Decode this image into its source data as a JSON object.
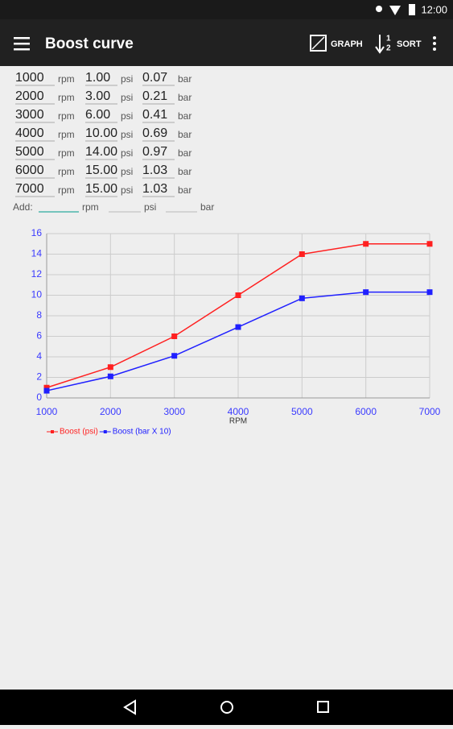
{
  "status_bar": {
    "time": "12:00"
  },
  "toolbar": {
    "title": "Boost curve",
    "actions": [
      "GRAPH",
      "SORT"
    ]
  },
  "table": {
    "units": [
      "rpm",
      "psi",
      "bar"
    ],
    "rows": [
      [
        "1000",
        "1.00",
        "0.07"
      ],
      [
        "2000",
        "3.00",
        "0.21"
      ],
      [
        "3000",
        "6.00",
        "0.41"
      ],
      [
        "4000",
        "10.00",
        "0.69"
      ],
      [
        "5000",
        "14.00",
        "0.97"
      ],
      [
        "6000",
        "15.00",
        "1.03"
      ],
      [
        "7000",
        "15.00",
        "1.03"
      ]
    ]
  },
  "add_row": {
    "label": "Add:"
  },
  "chart_data": {
    "type": "line",
    "xlabel": "RPM",
    "x": [
      1000,
      2000,
      3000,
      4000,
      5000,
      6000,
      7000
    ],
    "series": [
      {
        "name": "Boost (psi)",
        "color": "#ff2020",
        "values": [
          1,
          3,
          6,
          10,
          14,
          15,
          15
        ]
      },
      {
        "name": "Boost (bar X 10)",
        "color": "#2020ff",
        "values": [
          0.7,
          2.1,
          4.1,
          6.9,
          9.7,
          10.3,
          10.3
        ]
      }
    ],
    "xlim": [
      1000,
      7000
    ],
    "xticks": [
      1000,
      2000,
      3000,
      4000,
      5000,
      6000,
      7000
    ],
    "ylim": [
      0,
      16
    ],
    "yticks": [
      0,
      2,
      4,
      6,
      8,
      10,
      12,
      14,
      16
    ],
    "grid": true,
    "legend": "bottom-left",
    "tick_color": "#3a3aff"
  }
}
